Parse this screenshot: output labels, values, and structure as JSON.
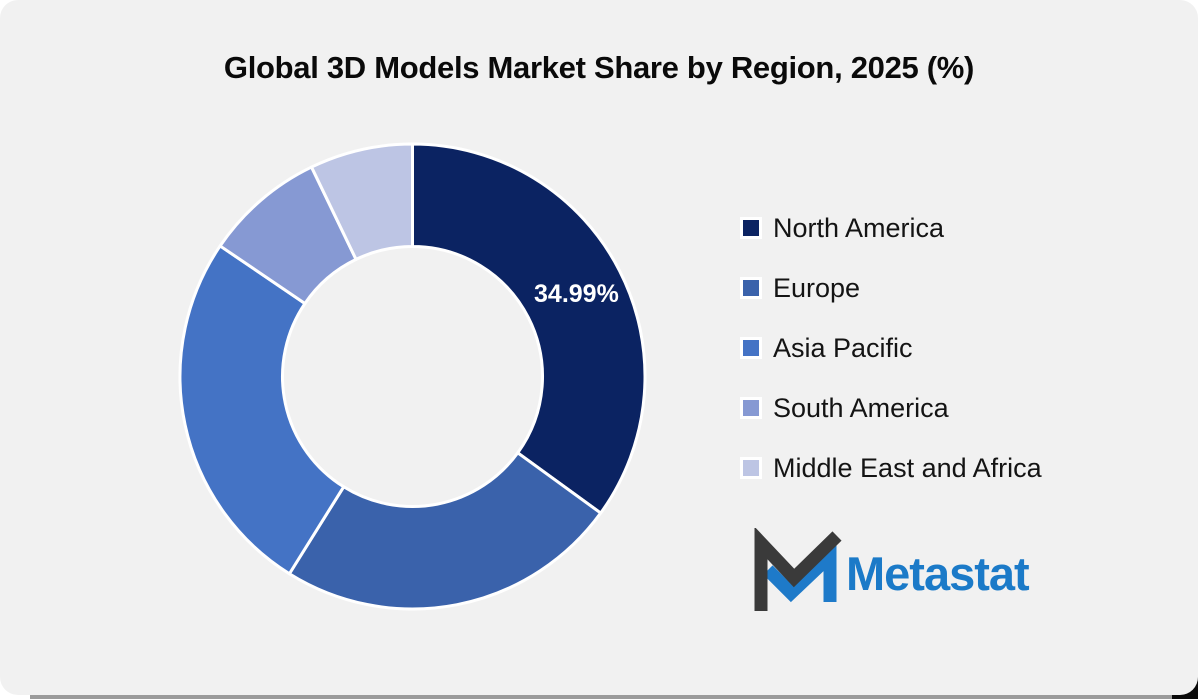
{
  "title": "Global 3D Models Market Share by Region, 2025 (%)",
  "chart_data": {
    "type": "pie",
    "subtype": "donut",
    "title": "Global 3D Models Market Share by Region, 2025 (%)",
    "categories": [
      "North America",
      "Europe",
      "Asia Pacific",
      "South America",
      "Middle East and Africa"
    ],
    "values": [
      34.99,
      23.89,
      25.61,
      8.36,
      7.15
    ],
    "unit": "%",
    "data_labels": [
      "34.99%",
      "",
      "",
      "",
      ""
    ],
    "colors": [
      "#0B2362",
      "#3A62AB",
      "#4473C5",
      "#8699D3",
      "#BDC5E4"
    ],
    "start_angle_deg": 0,
    "direction": "clockwise",
    "legend_position": "right",
    "hole_radius_ratio": 0.555
  },
  "logo": {
    "text": "Metastat",
    "mark_dark_color": "#3A3A3A",
    "mark_blue_color": "#1E7AC9",
    "text_color": "#1B7AC8"
  },
  "style": {
    "card_bg": "#F1F1F1",
    "page_bg": "#FFFFFF",
    "separator_color": "#FFFFFF",
    "slice_label_color": "#FFFFFF",
    "title_color": "#0A0A0A",
    "legend_text_color": "#141414"
  }
}
